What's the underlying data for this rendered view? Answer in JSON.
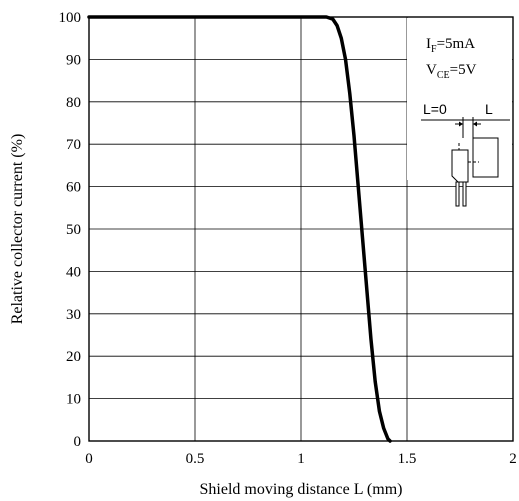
{
  "chart_data": {
    "type": "line",
    "title": "",
    "xlabel": "Shield moving distance L (mm)",
    "ylabel": "Relative collector current (%)",
    "xlim": [
      0,
      2
    ],
    "ylim": [
      0,
      100
    ],
    "xticks": [
      0,
      0.5,
      1,
      1.5,
      2
    ],
    "xtick_labels": [
      "0",
      "0.5",
      "1",
      "1.5",
      "2"
    ],
    "yticks": [
      0,
      10,
      20,
      30,
      40,
      50,
      60,
      70,
      80,
      90,
      100
    ],
    "ytick_labels": [
      "0",
      "10",
      "20",
      "30",
      "40",
      "50",
      "60",
      "70",
      "80",
      "90",
      "100"
    ],
    "grid": true,
    "series": [
      {
        "x": [
          0,
          1.12,
          1.15,
          1.17,
          1.19,
          1.21,
          1.23,
          1.25,
          1.27,
          1.29,
          1.31,
          1.33,
          1.35,
          1.37,
          1.39,
          1.41,
          1.42
        ],
        "y": [
          100,
          100,
          99.5,
          98,
          95,
          90,
          82,
          72,
          60,
          48,
          36,
          24,
          14,
          7,
          3,
          0.5,
          0
        ]
      }
    ],
    "conditions": {
      "if": {
        "main": "I",
        "sub": "F",
        "value": "=5mA"
      },
      "vce": {
        "main": "V",
        "sub": "CE",
        "value": "=5V"
      }
    },
    "diagram_labels": {
      "zero": "L=0",
      "l": "L"
    }
  }
}
